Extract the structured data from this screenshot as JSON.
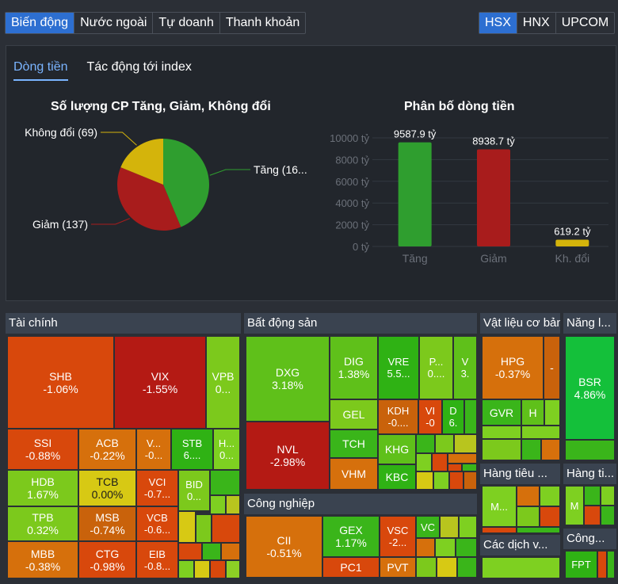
{
  "top_tabs": [
    "Biến động",
    "Nước ngoài",
    "Tự doanh",
    "Thanh khoản"
  ],
  "exchange_tabs": [
    "HSX",
    "HNX",
    "UPCOM"
  ],
  "sub_tabs": [
    "Dòng tiền",
    "Tác động tới index"
  ],
  "colors": {
    "up": "#2f9e2f",
    "down": "#a81c1c",
    "flat": "#d4b40b",
    "accent": "#2d6fd1"
  },
  "chart_data": [
    {
      "type": "pie",
      "title": "Số lượng CP Tăng, Giảm, Không đổi",
      "categories": [
        "Tăng",
        "Giảm",
        "Không đổi"
      ],
      "labels": [
        "Tăng (16...",
        "Giảm (137)",
        "Không đổi (69)"
      ],
      "values": [
        160,
        137,
        69
      ]
    },
    {
      "type": "bar",
      "title": "Phân bố dòng tiền",
      "categories": [
        "Tăng",
        "Giảm",
        "Kh. đổi"
      ],
      "values": [
        9587.9,
        8938.7,
        619.2
      ],
      "value_labels": [
        "9587.9 tỷ",
        "8938.7 tỷ",
        "619.2 tỷ"
      ],
      "y_ticks": [
        "0 tỷ",
        "2000 tỷ",
        "4000 tỷ",
        "6000 tỷ",
        "8000 tỷ",
        "10000 tỷ"
      ],
      "ylim": [
        0,
        10000
      ]
    }
  ],
  "treemap": {
    "sectors": [
      "Tài chính",
      "Bất động sản",
      "Vật liệu cơ bản",
      "Năng l...",
      "Công nghiệp",
      "Hàng tiêu ...",
      "Hàng ti...",
      "Các dịch v...",
      "Công..."
    ],
    "cells": [
      {
        "sym": "SHB",
        "pct": "-1.06%"
      },
      {
        "sym": "VIX",
        "pct": "-1.55%"
      },
      {
        "sym": "VPB",
        "pct": "0..."
      },
      {
        "sym": "SSI",
        "pct": "-0.88%"
      },
      {
        "sym": "ACB",
        "pct": "-0.22%"
      },
      {
        "sym": "V...",
        "pct": "-0..."
      },
      {
        "sym": "STB",
        "pct": "6...."
      },
      {
        "sym": "H...",
        "pct": "0..."
      },
      {
        "sym": "HDB",
        "pct": "1.67%"
      },
      {
        "sym": "TCB",
        "pct": "0.00%"
      },
      {
        "sym": "VCI",
        "pct": "-0.7..."
      },
      {
        "sym": "BID",
        "pct": "0..."
      },
      {
        "sym": "TPB",
        "pct": "0.32%"
      },
      {
        "sym": "MSB",
        "pct": "-0.74%"
      },
      {
        "sym": "VCB",
        "pct": "-0.6..."
      },
      {
        "sym": "MBB",
        "pct": "-0.38%"
      },
      {
        "sym": "CTG",
        "pct": "-0.98%"
      },
      {
        "sym": "EIB",
        "pct": "-0.8..."
      },
      {
        "sym": "DXG",
        "pct": "3.18%"
      },
      {
        "sym": "DIG",
        "pct": "1.38%"
      },
      {
        "sym": "VRE",
        "pct": "5.5..."
      },
      {
        "sym": "P...",
        "pct": "0...."
      },
      {
        "sym": "V",
        "pct": "3."
      },
      {
        "sym": "NVL",
        "pct": "-2.98%"
      },
      {
        "sym": "GEL",
        "pct": ""
      },
      {
        "sym": "KDH",
        "pct": "-0...."
      },
      {
        "sym": "VI",
        "pct": "-0"
      },
      {
        "sym": "D",
        "pct": "6."
      },
      {
        "sym": "TCH",
        "pct": ""
      },
      {
        "sym": "KHG",
        "pct": ""
      },
      {
        "sym": "VHM",
        "pct": ""
      },
      {
        "sym": "KBC",
        "pct": ""
      },
      {
        "sym": "HPG",
        "pct": "-0.37%"
      },
      {
        "sym": "-",
        "pct": ""
      },
      {
        "sym": "GVR",
        "pct": ""
      },
      {
        "sym": "H",
        "pct": ""
      },
      {
        "sym": "BSR",
        "pct": "4.86%"
      },
      {
        "sym": "CII",
        "pct": "-0.51%"
      },
      {
        "sym": "GEX",
        "pct": "1.17%"
      },
      {
        "sym": "VSC",
        "pct": "-2..."
      },
      {
        "sym": "VC",
        "pct": ""
      },
      {
        "sym": "PC1",
        "pct": ""
      },
      {
        "sym": "PVT",
        "pct": ""
      },
      {
        "sym": "M...",
        "pct": ""
      },
      {
        "sym": "M",
        "pct": ""
      },
      {
        "sym": "FPT",
        "pct": ""
      }
    ]
  }
}
